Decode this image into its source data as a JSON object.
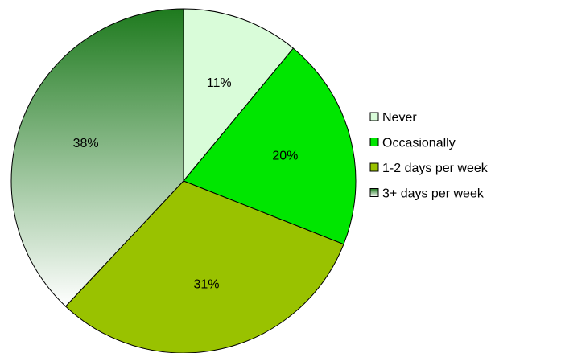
{
  "chart_data": {
    "type": "pie",
    "title": "",
    "legend_position": "right",
    "slices": [
      {
        "label": "Never",
        "value": 11,
        "data_label": "11%",
        "color": "#d9fcd9"
      },
      {
        "label": "Occasionally",
        "value": 20,
        "data_label": "20%",
        "color": "#00e600"
      },
      {
        "label": "1-2 days per week",
        "value": 31,
        "data_label": "31%",
        "color": "#99c200"
      },
      {
        "label": "3+ days per week",
        "value": 38,
        "data_label": "38%",
        "color_gradient": [
          "#1e7a1e",
          "#ffffff"
        ]
      }
    ]
  }
}
